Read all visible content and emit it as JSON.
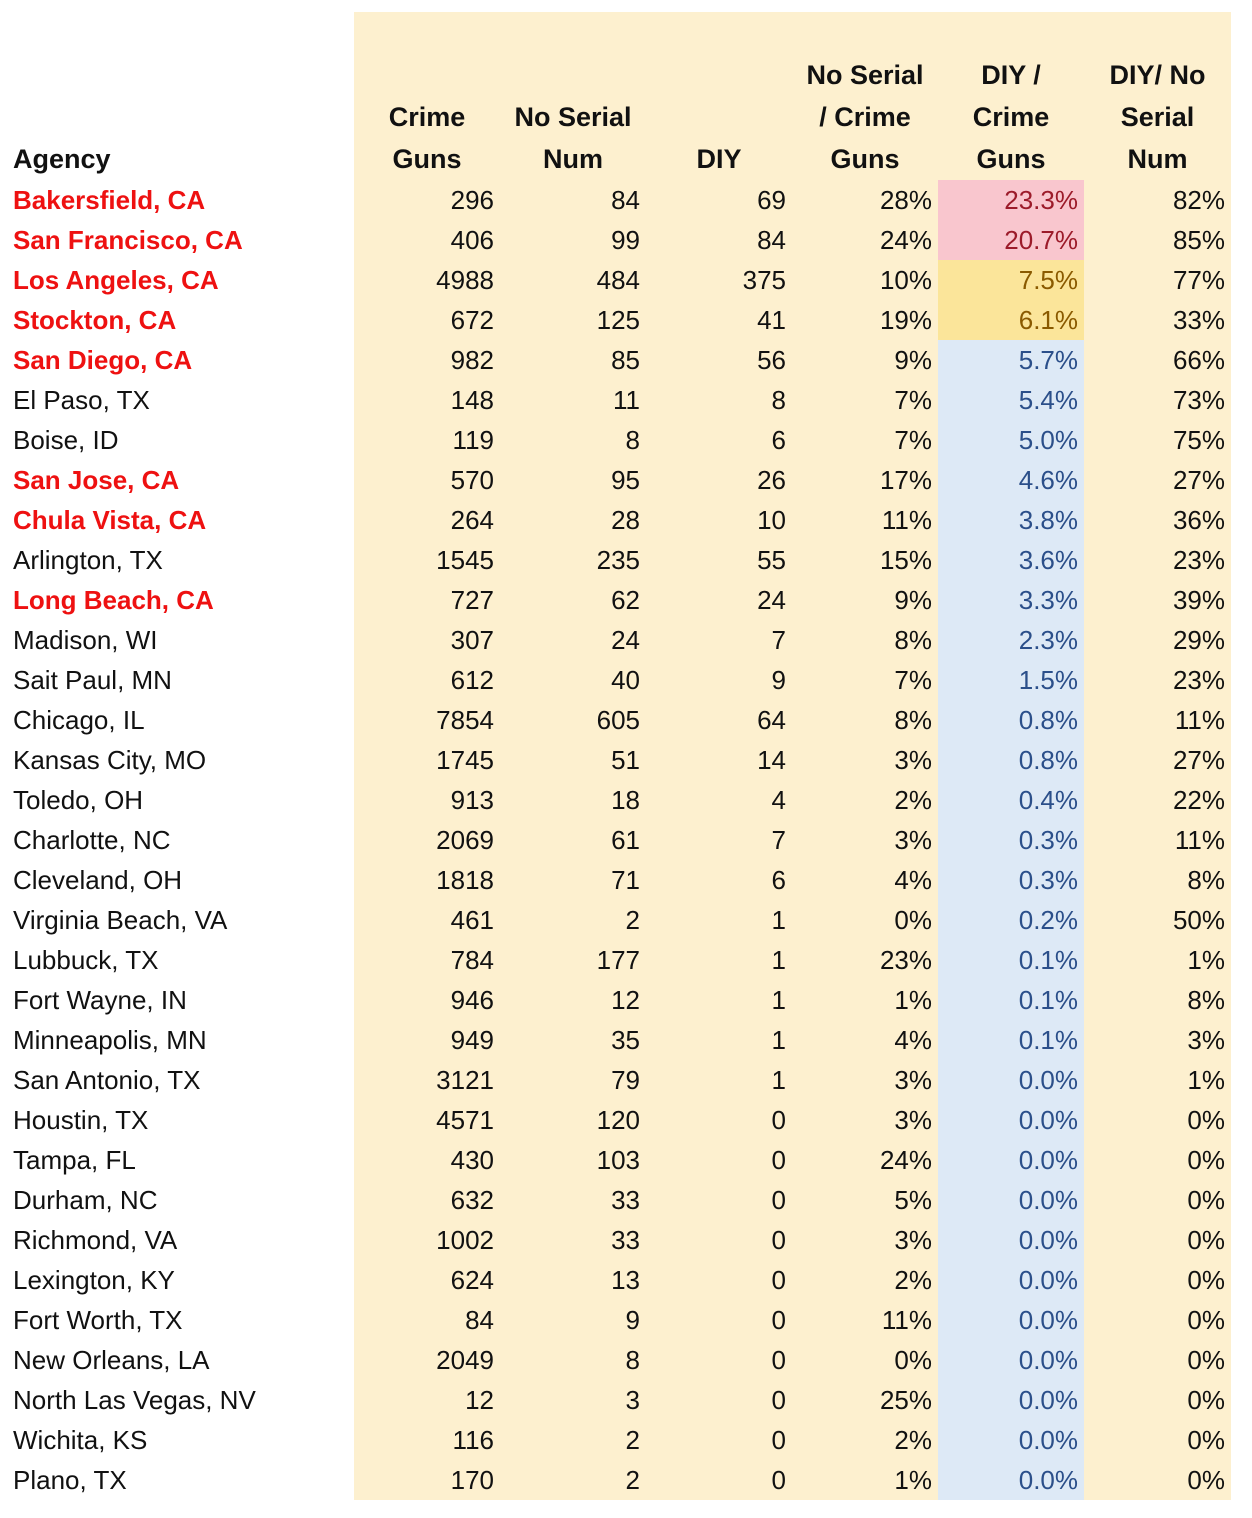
{
  "headers": {
    "agency": "Agency",
    "crime_guns": [
      "Crime",
      "Guns"
    ],
    "no_serial_num": [
      "No Serial",
      "Num"
    ],
    "diy": [
      "DIY"
    ],
    "no_serial_over_crime": [
      "No Serial",
      "/ Crime",
      "Guns"
    ],
    "diy_over_crime": [
      "DIY /",
      "Crime",
      "Guns"
    ],
    "diy_over_no_serial": [
      "DIY/ No",
      "Serial",
      "Num"
    ]
  },
  "colors": {
    "sheet_background": "#fdf0cf",
    "california_text": "#ee1111",
    "high_fill": "#f9c6ce",
    "mid_fill": "#fbe59a",
    "low_fill": "#dde9f6"
  },
  "rows": [
    {
      "agency": "Bakersfield, CA",
      "ca": true,
      "crime_guns": "296",
      "no_serial": "84",
      "diy": "69",
      "ns_crime": "28%",
      "diy_crime": "23.3%",
      "diy_ns": "82%",
      "tier": "pink"
    },
    {
      "agency": "San Francisco, CA",
      "ca": true,
      "crime_guns": "406",
      "no_serial": "99",
      "diy": "84",
      "ns_crime": "24%",
      "diy_crime": "20.7%",
      "diy_ns": "85%",
      "tier": "pink"
    },
    {
      "agency": "Los Angeles, CA",
      "ca": true,
      "crime_guns": "4988",
      "no_serial": "484",
      "diy": "375",
      "ns_crime": "10%",
      "diy_crime": "7.5%",
      "diy_ns": "77%",
      "tier": "yellow"
    },
    {
      "agency": "Stockton, CA",
      "ca": true,
      "crime_guns": "672",
      "no_serial": "125",
      "diy": "41",
      "ns_crime": "19%",
      "diy_crime": "6.1%",
      "diy_ns": "33%",
      "tier": "yellow"
    },
    {
      "agency": "San Diego, CA",
      "ca": true,
      "crime_guns": "982",
      "no_serial": "85",
      "diy": "56",
      "ns_crime": "9%",
      "diy_crime": "5.7%",
      "diy_ns": "66%",
      "tier": "blue"
    },
    {
      "agency": "El Paso, TX",
      "ca": false,
      "crime_guns": "148",
      "no_serial": "11",
      "diy": "8",
      "ns_crime": "7%",
      "diy_crime": "5.4%",
      "diy_ns": "73%",
      "tier": "blue"
    },
    {
      "agency": "Boise, ID",
      "ca": false,
      "crime_guns": "119",
      "no_serial": "8",
      "diy": "6",
      "ns_crime": "7%",
      "diy_crime": "5.0%",
      "diy_ns": "75%",
      "tier": "blue"
    },
    {
      "agency": "San Jose, CA",
      "ca": true,
      "crime_guns": "570",
      "no_serial": "95",
      "diy": "26",
      "ns_crime": "17%",
      "diy_crime": "4.6%",
      "diy_ns": "27%",
      "tier": "blue"
    },
    {
      "agency": "Chula Vista, CA",
      "ca": true,
      "crime_guns": "264",
      "no_serial": "28",
      "diy": "10",
      "ns_crime": "11%",
      "diy_crime": "3.8%",
      "diy_ns": "36%",
      "tier": "blue"
    },
    {
      "agency": "Arlington, TX",
      "ca": false,
      "crime_guns": "1545",
      "no_serial": "235",
      "diy": "55",
      "ns_crime": "15%",
      "diy_crime": "3.6%",
      "diy_ns": "23%",
      "tier": "blue"
    },
    {
      "agency": "Long Beach, CA",
      "ca": true,
      "crime_guns": "727",
      "no_serial": "62",
      "diy": "24",
      "ns_crime": "9%",
      "diy_crime": "3.3%",
      "diy_ns": "39%",
      "tier": "blue"
    },
    {
      "agency": "Madison, WI",
      "ca": false,
      "crime_guns": "307",
      "no_serial": "24",
      "diy": "7",
      "ns_crime": "8%",
      "diy_crime": "2.3%",
      "diy_ns": "29%",
      "tier": "blue"
    },
    {
      "agency": "Sait Paul, MN",
      "ca": false,
      "crime_guns": "612",
      "no_serial": "40",
      "diy": "9",
      "ns_crime": "7%",
      "diy_crime": "1.5%",
      "diy_ns": "23%",
      "tier": "blue"
    },
    {
      "agency": "Chicago, IL",
      "ca": false,
      "crime_guns": "7854",
      "no_serial": "605",
      "diy": "64",
      "ns_crime": "8%",
      "diy_crime": "0.8%",
      "diy_ns": "11%",
      "tier": "blue"
    },
    {
      "agency": "Kansas City, MO",
      "ca": false,
      "crime_guns": "1745",
      "no_serial": "51",
      "diy": "14",
      "ns_crime": "3%",
      "diy_crime": "0.8%",
      "diy_ns": "27%",
      "tier": "blue"
    },
    {
      "agency": "Toledo, OH",
      "ca": false,
      "crime_guns": "913",
      "no_serial": "18",
      "diy": "4",
      "ns_crime": "2%",
      "diy_crime": "0.4%",
      "diy_ns": "22%",
      "tier": "blue"
    },
    {
      "agency": "Charlotte, NC",
      "ca": false,
      "crime_guns": "2069",
      "no_serial": "61",
      "diy": "7",
      "ns_crime": "3%",
      "diy_crime": "0.3%",
      "diy_ns": "11%",
      "tier": "blue"
    },
    {
      "agency": "Cleveland, OH",
      "ca": false,
      "crime_guns": "1818",
      "no_serial": "71",
      "diy": "6",
      "ns_crime": "4%",
      "diy_crime": "0.3%",
      "diy_ns": "8%",
      "tier": "blue"
    },
    {
      "agency": "Virginia Beach, VA",
      "ca": false,
      "crime_guns": "461",
      "no_serial": "2",
      "diy": "1",
      "ns_crime": "0%",
      "diy_crime": "0.2%",
      "diy_ns": "50%",
      "tier": "blue"
    },
    {
      "agency": "Lubbuck, TX",
      "ca": false,
      "crime_guns": "784",
      "no_serial": "177",
      "diy": "1",
      "ns_crime": "23%",
      "diy_crime": "0.1%",
      "diy_ns": "1%",
      "tier": "blue"
    },
    {
      "agency": "Fort Wayne, IN",
      "ca": false,
      "crime_guns": "946",
      "no_serial": "12",
      "diy": "1",
      "ns_crime": "1%",
      "diy_crime": "0.1%",
      "diy_ns": "8%",
      "tier": "blue"
    },
    {
      "agency": "Minneapolis, MN",
      "ca": false,
      "crime_guns": "949",
      "no_serial": "35",
      "diy": "1",
      "ns_crime": "4%",
      "diy_crime": "0.1%",
      "diy_ns": "3%",
      "tier": "blue"
    },
    {
      "agency": "San Antonio, TX",
      "ca": false,
      "crime_guns": "3121",
      "no_serial": "79",
      "diy": "1",
      "ns_crime": "3%",
      "diy_crime": "0.0%",
      "diy_ns": "1%",
      "tier": "blue"
    },
    {
      "agency": "Houstin, TX",
      "ca": false,
      "crime_guns": "4571",
      "no_serial": "120",
      "diy": "0",
      "ns_crime": "3%",
      "diy_crime": "0.0%",
      "diy_ns": "0%",
      "tier": "blue"
    },
    {
      "agency": "Tampa, FL",
      "ca": false,
      "crime_guns": "430",
      "no_serial": "103",
      "diy": "0",
      "ns_crime": "24%",
      "diy_crime": "0.0%",
      "diy_ns": "0%",
      "tier": "blue"
    },
    {
      "agency": "Durham, NC",
      "ca": false,
      "crime_guns": "632",
      "no_serial": "33",
      "diy": "0",
      "ns_crime": "5%",
      "diy_crime": "0.0%",
      "diy_ns": "0%",
      "tier": "blue"
    },
    {
      "agency": "Richmond, VA",
      "ca": false,
      "crime_guns": "1002",
      "no_serial": "33",
      "diy": "0",
      "ns_crime": "3%",
      "diy_crime": "0.0%",
      "diy_ns": "0%",
      "tier": "blue"
    },
    {
      "agency": "Lexington, KY",
      "ca": false,
      "crime_guns": "624",
      "no_serial": "13",
      "diy": "0",
      "ns_crime": "2%",
      "diy_crime": "0.0%",
      "diy_ns": "0%",
      "tier": "blue"
    },
    {
      "agency": "Fort Worth, TX",
      "ca": false,
      "crime_guns": "84",
      "no_serial": "9",
      "diy": "0",
      "ns_crime": "11%",
      "diy_crime": "0.0%",
      "diy_ns": "0%",
      "tier": "blue"
    },
    {
      "agency": "New Orleans, LA",
      "ca": false,
      "crime_guns": "2049",
      "no_serial": "8",
      "diy": "0",
      "ns_crime": "0%",
      "diy_crime": "0.0%",
      "diy_ns": "0%",
      "tier": "blue"
    },
    {
      "agency": "North Las Vegas, NV",
      "ca": false,
      "crime_guns": "12",
      "no_serial": "3",
      "diy": "0",
      "ns_crime": "25%",
      "diy_crime": "0.0%",
      "diy_ns": "0%",
      "tier": "blue"
    },
    {
      "agency": "Wichita, KS",
      "ca": false,
      "crime_guns": "116",
      "no_serial": "2",
      "diy": "0",
      "ns_crime": "2%",
      "diy_crime": "0.0%",
      "diy_ns": "0%",
      "tier": "blue"
    },
    {
      "agency": "Plano, TX",
      "ca": false,
      "crime_guns": "170",
      "no_serial": "2",
      "diy": "0",
      "ns_crime": "1%",
      "diy_crime": "0.0%",
      "diy_ns": "0%",
      "tier": "blue"
    }
  ]
}
